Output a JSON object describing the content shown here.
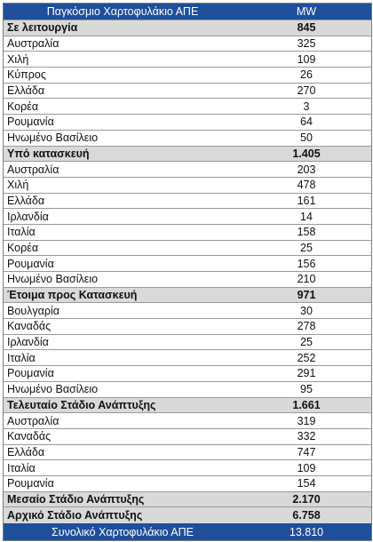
{
  "header": {
    "title": "Παγκόσμιο Χαρτοφυλάκιο ΑΠΕ",
    "unit": "MW"
  },
  "groups": [
    {
      "label": "Σε λειτουργία",
      "total": "845",
      "rows": [
        {
          "country": "Αυστραλία",
          "mw": "325"
        },
        {
          "country": "Χιλή",
          "mw": "109"
        },
        {
          "country": "Κύπρος",
          "mw": "26"
        },
        {
          "country": "Ελλάδα",
          "mw": "270"
        },
        {
          "country": "Κορέα",
          "mw": "3"
        },
        {
          "country": "Ρουμανία",
          "mw": "64"
        },
        {
          "country": "Ηνωμένο Βασίλειο",
          "mw": "50"
        }
      ]
    },
    {
      "label": "Υπό κατασκευή",
      "total": "1.405",
      "rows": [
        {
          "country": "Αυστραλία",
          "mw": "203"
        },
        {
          "country": "Χιλή",
          "mw": "478"
        },
        {
          "country": "Ελλάδα",
          "mw": "161"
        },
        {
          "country": "Ιρλανδία",
          "mw": "14"
        },
        {
          "country": "Ιταλία",
          "mw": "158"
        },
        {
          "country": "Κορέα",
          "mw": "25"
        },
        {
          "country": "Ρουμανία",
          "mw": "156"
        },
        {
          "country": "Ηνωμένο Βασίλειο",
          "mw": "210"
        }
      ]
    },
    {
      "label": "Έτοιμα προς Κατασκευή",
      "total": "971",
      "rows": [
        {
          "country": "Βουλγαρία",
          "mw": "30"
        },
        {
          "country": "Καναδάς",
          "mw": "278"
        },
        {
          "country": "Ιρλανδία",
          "mw": "25"
        },
        {
          "country": "Ιταλία",
          "mw": "252"
        },
        {
          "country": "Ρουμανία",
          "mw": "291"
        },
        {
          "country": "Ηνωμένο Βασίλειο",
          "mw": "95"
        }
      ]
    },
    {
      "label": "Τελευταίο Στάδιο Ανάπτυξης",
      "total": "1.661",
      "rows": [
        {
          "country": "Αυστραλία",
          "mw": "319"
        },
        {
          "country": "Καναδάς",
          "mw": "332"
        },
        {
          "country": "Ελλάδα",
          "mw": "747"
        },
        {
          "country": "Ιταλία",
          "mw": "109"
        },
        {
          "country": "Ρουμανία",
          "mw": "154"
        }
      ]
    },
    {
      "label": "Μεσαίο Στάδιο Ανάπτυξης",
      "total": "2.170",
      "rows": []
    },
    {
      "label": "Αρχικό Στάδιο Ανάπτυξης",
      "total": "6.758",
      "rows": []
    }
  ],
  "footer": {
    "label": "Συνολικό Χαρτοφυλάκιο ΑΠΕ",
    "total": "13.810"
  },
  "colors": {
    "header_bg": "#1f4e9a",
    "group_bg": "#d9d9d9"
  }
}
